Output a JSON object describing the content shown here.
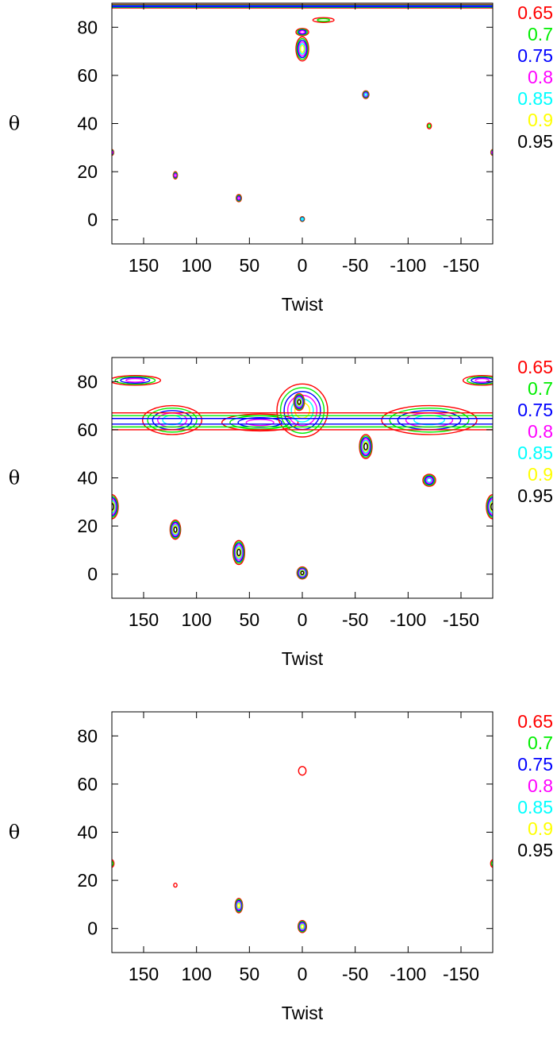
{
  "chart_data": [
    {
      "type": "contour",
      "xlabel": "Twist",
      "ylabel": "θ",
      "xlim": [
        180,
        -180
      ],
      "ylim": [
        -10,
        90
      ],
      "xticks": [
        150,
        100,
        50,
        0,
        -50,
        -100,
        -150
      ],
      "yticks": [
        0,
        20,
        40,
        60,
        80
      ],
      "legend_position": "right",
      "levels": [
        {
          "label": "0.65",
          "color": "#ff0000"
        },
        {
          "label": "0.7",
          "color": "#00ee00"
        },
        {
          "label": "0.75",
          "color": "#0000ff"
        },
        {
          "label": "0.8",
          "color": "#ff00ff"
        },
        {
          "label": "0.85",
          "color": "#00ffff"
        },
        {
          "label": "0.9",
          "color": "#ffff00"
        },
        {
          "label": "0.95",
          "color": "#000000"
        }
      ],
      "features": [
        {
          "kind": "blob",
          "x": 0,
          "y": 71,
          "rx": 6,
          "ry": 5,
          "n": 6
        },
        {
          "kind": "blob",
          "x": 0,
          "y": 78,
          "rx": 6,
          "ry": 1.5,
          "n": 4
        },
        {
          "kind": "blob",
          "x": -20,
          "y": 83,
          "rx": 10,
          "ry": 1,
          "n": 2
        },
        {
          "kind": "blob",
          "x": -60,
          "y": 52,
          "rx": 3,
          "ry": 1.6,
          "n": 5
        },
        {
          "kind": "blob",
          "x": -120,
          "y": 39,
          "rx": 2,
          "ry": 1.2,
          "n": 2
        },
        {
          "kind": "blob",
          "x": 120,
          "y": 18.5,
          "rx": 2,
          "ry": 1.5,
          "n": 4
        },
        {
          "kind": "blob",
          "x": 60,
          "y": 9,
          "rx": 2.5,
          "ry": 1.5,
          "n": 4
        },
        {
          "kind": "blob",
          "x": 0,
          "y": 0.3,
          "rx": 2,
          "ry": 1,
          "n": 5
        },
        {
          "kind": "blob",
          "x": 180,
          "y": 28,
          "rx": 1.8,
          "ry": 1.2,
          "n": 4
        },
        {
          "kind": "blob",
          "x": -180,
          "y": 28,
          "rx": 1.8,
          "ry": 1.2,
          "n": 4
        },
        {
          "kind": "band",
          "y0": 88,
          "y1": 89.5,
          "n": 3
        }
      ]
    },
    {
      "type": "contour",
      "xlabel": "Twist",
      "ylabel": "θ",
      "xlim": [
        180,
        -180
      ],
      "ylim": [
        -10,
        90
      ],
      "xticks": [
        150,
        100,
        50,
        0,
        -50,
        -100,
        -150
      ],
      "yticks": [
        0,
        20,
        40,
        60,
        80
      ],
      "legend_position": "right",
      "levels": [
        {
          "label": "0.65",
          "color": "#ff0000"
        },
        {
          "label": "0.7",
          "color": "#00ee00"
        },
        {
          "label": "0.75",
          "color": "#0000ff"
        },
        {
          "label": "0.8",
          "color": "#ff00ff"
        },
        {
          "label": "0.85",
          "color": "#00ffff"
        },
        {
          "label": "0.9",
          "color": "#ffff00"
        },
        {
          "label": "0.95",
          "color": "#000000"
        }
      ],
      "features": [
        {
          "kind": "blob",
          "x": 123,
          "y": 64,
          "rx": 28,
          "ry": 6,
          "n": 5
        },
        {
          "kind": "blob",
          "x": 40,
          "y": 63,
          "rx": 36,
          "ry": 3.5,
          "n": 4
        },
        {
          "kind": "blob",
          "x": 0,
          "y": 68,
          "rx": 24,
          "ry": 11,
          "n": 6
        },
        {
          "kind": "blob",
          "x": 3,
          "y": 71.5,
          "rx": 5,
          "ry": 3.5,
          "n": 7
        },
        {
          "kind": "blob",
          "x": -120,
          "y": 64,
          "rx": 45,
          "ry": 6,
          "n": 5
        },
        {
          "kind": "blob",
          "x": -60,
          "y": 53,
          "rx": 6,
          "ry": 5,
          "n": 7
        },
        {
          "kind": "blob",
          "x": -120,
          "y": 39,
          "rx": 6,
          "ry": 2.5,
          "n": 5
        },
        {
          "kind": "blob",
          "x": 120,
          "y": 18.5,
          "rx": 5,
          "ry": 4,
          "n": 7
        },
        {
          "kind": "blob",
          "x": 60,
          "y": 9,
          "rx": 5.5,
          "ry": 5,
          "n": 7
        },
        {
          "kind": "blob",
          "x": 0,
          "y": 0.5,
          "rx": 5,
          "ry": 2.5,
          "n": 7
        },
        {
          "kind": "blob",
          "x": 180,
          "y": 28,
          "rx": 6,
          "ry": 5,
          "n": 7
        },
        {
          "kind": "blob",
          "x": -180,
          "y": 28,
          "rx": 6,
          "ry": 5,
          "n": 7
        },
        {
          "kind": "blob",
          "x": 158,
          "y": 80.5,
          "rx": 24,
          "ry": 2,
          "n": 4
        },
        {
          "kind": "blob",
          "x": -170,
          "y": 80.5,
          "rx": 18,
          "ry": 2,
          "n": 4
        },
        {
          "kind": "band",
          "y0": 60,
          "y1": 67,
          "n": 3
        }
      ]
    },
    {
      "type": "contour",
      "xlabel": "Twist",
      "ylabel": "θ",
      "xlim": [
        180,
        -180
      ],
      "ylim": [
        -10,
        90
      ],
      "xticks": [
        150,
        100,
        50,
        0,
        -50,
        -100,
        -150
      ],
      "yticks": [
        0,
        20,
        40,
        60,
        80
      ],
      "legend_position": "right",
      "levels": [
        {
          "label": "0.65",
          "color": "#ff0000"
        },
        {
          "label": "0.7",
          "color": "#00ee00"
        },
        {
          "label": "0.75",
          "color": "#0000ff"
        },
        {
          "label": "0.8",
          "color": "#ff00ff"
        },
        {
          "label": "0.85",
          "color": "#00ffff"
        },
        {
          "label": "0.9",
          "color": "#ffff00"
        },
        {
          "label": "0.95",
          "color": "#000000"
        }
      ],
      "features": [
        {
          "kind": "blob",
          "x": 0,
          "y": 65.5,
          "rx": 3.5,
          "ry": 1.8,
          "n": 1
        },
        {
          "kind": "blob",
          "x": 120,
          "y": 18,
          "rx": 1.6,
          "ry": 0.8,
          "n": 1
        },
        {
          "kind": "blob",
          "x": 60,
          "y": 9.5,
          "rx": 3.5,
          "ry": 3,
          "n": 6
        },
        {
          "kind": "blob",
          "x": 0,
          "y": 0.8,
          "rx": 4,
          "ry": 2.5,
          "n": 6
        },
        {
          "kind": "blob",
          "x": 180,
          "y": 27,
          "rx": 2,
          "ry": 1.5,
          "n": 2
        },
        {
          "kind": "blob",
          "x": -180,
          "y": 27,
          "rx": 2,
          "ry": 1.5,
          "n": 2
        }
      ]
    }
  ]
}
